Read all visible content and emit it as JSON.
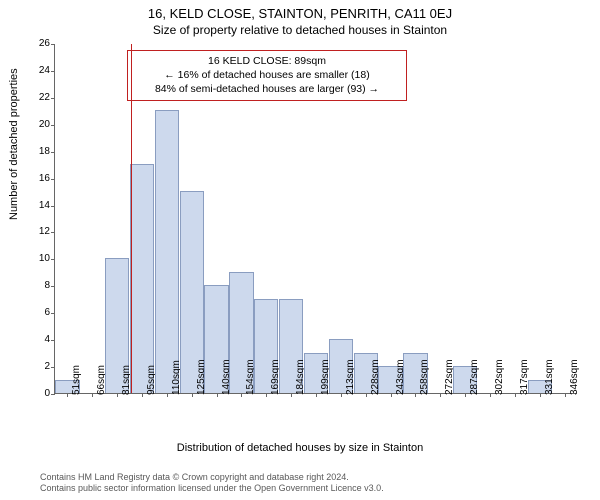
{
  "title": "16, KELD CLOSE, STAINTON, PENRITH, CA11 0EJ",
  "subtitle": "Size of property relative to detached houses in Stainton",
  "y_axis_label": "Number of detached properties",
  "x_axis_label": "Distribution of detached houses by size in Stainton",
  "chart": {
    "type": "histogram",
    "y_max": 26,
    "y_tick_step": 2,
    "bar_fill": "#cdd9ed",
    "bar_stroke": "#8a9dc0",
    "plot_bg": "#ffffff",
    "axis_color": "#666666",
    "highlight_line_color": "#c02020",
    "highlight_value": 89,
    "categories": [
      "51sqm",
      "66sqm",
      "81sqm",
      "95sqm",
      "110sqm",
      "125sqm",
      "140sqm",
      "154sqm",
      "169sqm",
      "184sqm",
      "199sqm",
      "213sqm",
      "228sqm",
      "243sqm",
      "258sqm",
      "272sqm",
      "287sqm",
      "302sqm",
      "317sqm",
      "331sqm",
      "346sqm"
    ],
    "values": [
      1,
      0,
      10,
      17,
      21,
      15,
      8,
      9,
      7,
      7,
      3,
      4,
      3,
      2,
      3,
      0,
      2,
      0,
      0,
      1,
      0
    ]
  },
  "callout": {
    "border_color": "#c02020",
    "line1": "16 KELD CLOSE: 89sqm",
    "line2": "← 16% of detached houses are smaller (18)",
    "line3": "84% of semi-detached houses are larger (93) →"
  },
  "footer": {
    "line1": "Contains HM Land Registry data © Crown copyright and database right 2024.",
    "line2": "Contains public sector information licensed under the Open Government Licence v3.0."
  }
}
